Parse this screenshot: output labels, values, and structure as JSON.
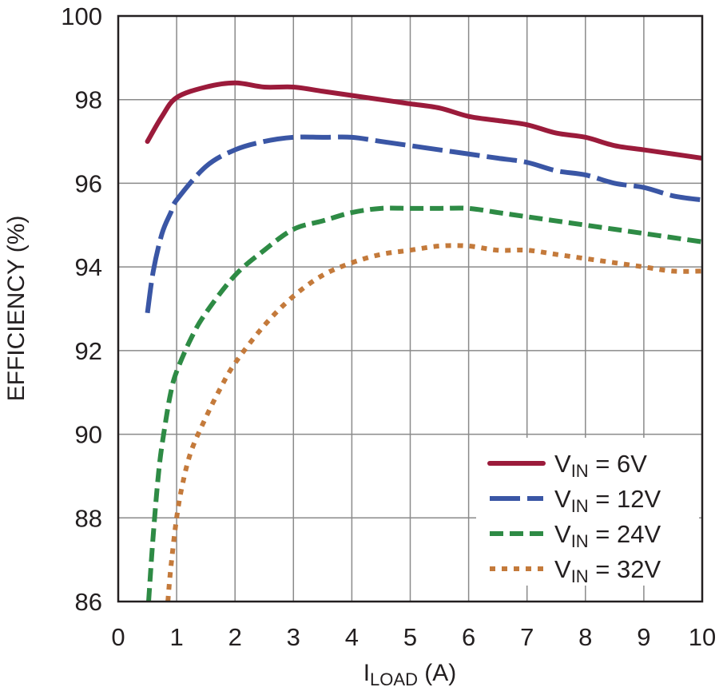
{
  "chart_data": {
    "type": "line",
    "xlabel": "I",
    "xlabel_sub": "LOAD",
    "xlabel_unit": " (A)",
    "ylabel": "EFFICIENCY (%)",
    "xlim": [
      0,
      10
    ],
    "ylim": [
      86,
      100
    ],
    "x_ticks": [
      0,
      1,
      2,
      3,
      4,
      5,
      6,
      7,
      8,
      9,
      10
    ],
    "y_ticks": [
      86,
      88,
      90,
      92,
      94,
      96,
      98,
      100
    ],
    "grid": true,
    "legend_position": "bottom-right",
    "series": [
      {
        "name_main": "V",
        "name_sub": "IN",
        "name_rest": " = 6V",
        "color": "#9b1b3b",
        "style": "solid",
        "points": [
          [
            0.5,
            97.0
          ],
          [
            0.75,
            97.6
          ],
          [
            1.0,
            98.05
          ],
          [
            1.5,
            98.3
          ],
          [
            2.0,
            98.4
          ],
          [
            2.5,
            98.3
          ],
          [
            3.0,
            98.3
          ],
          [
            3.5,
            98.2
          ],
          [
            4.0,
            98.1
          ],
          [
            4.5,
            98.0
          ],
          [
            5.0,
            97.9
          ],
          [
            5.5,
            97.8
          ],
          [
            6.0,
            97.6
          ],
          [
            6.5,
            97.5
          ],
          [
            7.0,
            97.4
          ],
          [
            7.5,
            97.2
          ],
          [
            8.0,
            97.1
          ],
          [
            8.5,
            96.9
          ],
          [
            9.0,
            96.8
          ],
          [
            9.5,
            96.7
          ],
          [
            10.0,
            96.6
          ]
        ]
      },
      {
        "name_main": "V",
        "name_sub": "IN",
        "name_rest": " = 12V",
        "color": "#3a56a5",
        "style": "long-dash",
        "points": [
          [
            0.5,
            92.9
          ],
          [
            0.6,
            93.9
          ],
          [
            0.75,
            94.8
          ],
          [
            0.9,
            95.3
          ],
          [
            1.0,
            95.6
          ],
          [
            1.5,
            96.4
          ],
          [
            2.0,
            96.8
          ],
          [
            2.5,
            97.0
          ],
          [
            3.0,
            97.1
          ],
          [
            3.5,
            97.1
          ],
          [
            4.0,
            97.1
          ],
          [
            4.5,
            97.0
          ],
          [
            5.0,
            96.9
          ],
          [
            5.5,
            96.8
          ],
          [
            6.0,
            96.7
          ],
          [
            6.5,
            96.6
          ],
          [
            7.0,
            96.5
          ],
          [
            7.5,
            96.3
          ],
          [
            8.0,
            96.2
          ],
          [
            8.5,
            96.0
          ],
          [
            9.0,
            95.9
          ],
          [
            9.5,
            95.7
          ],
          [
            10.0,
            95.6
          ]
        ]
      },
      {
        "name_main": "V",
        "name_sub": "IN",
        "name_rest": " = 24V",
        "color": "#2e8b45",
        "style": "dash",
        "points": [
          [
            0.52,
            86.0
          ],
          [
            0.6,
            87.6
          ],
          [
            0.7,
            89.2
          ],
          [
            0.8,
            90.2
          ],
          [
            0.9,
            91.0
          ],
          [
            1.0,
            91.5
          ],
          [
            1.25,
            92.3
          ],
          [
            1.5,
            92.9
          ],
          [
            2.0,
            93.8
          ],
          [
            2.5,
            94.4
          ],
          [
            3.0,
            94.9
          ],
          [
            3.5,
            95.1
          ],
          [
            4.0,
            95.3
          ],
          [
            4.5,
            95.4
          ],
          [
            5.0,
            95.4
          ],
          [
            5.5,
            95.4
          ],
          [
            6.0,
            95.4
          ],
          [
            6.5,
            95.3
          ],
          [
            7.0,
            95.2
          ],
          [
            7.5,
            95.1
          ],
          [
            8.0,
            95.0
          ],
          [
            8.5,
            94.9
          ],
          [
            9.0,
            94.8
          ],
          [
            9.5,
            94.7
          ],
          [
            10.0,
            94.6
          ]
        ]
      },
      {
        "name_main": "V",
        "name_sub": "IN",
        "name_rest": " = 32V",
        "color": "#c47a3b",
        "style": "dot",
        "points": [
          [
            0.85,
            86.0
          ],
          [
            0.9,
            86.8
          ],
          [
            1.0,
            88.0
          ],
          [
            1.1,
            88.8
          ],
          [
            1.25,
            89.6
          ],
          [
            1.5,
            90.4
          ],
          [
            1.75,
            91.1
          ],
          [
            2.0,
            91.7
          ],
          [
            2.5,
            92.6
          ],
          [
            3.0,
            93.3
          ],
          [
            3.5,
            93.8
          ],
          [
            4.0,
            94.1
          ],
          [
            4.5,
            94.3
          ],
          [
            5.0,
            94.4
          ],
          [
            5.5,
            94.5
          ],
          [
            6.0,
            94.5
          ],
          [
            6.5,
            94.4
          ],
          [
            7.0,
            94.4
          ],
          [
            7.5,
            94.3
          ],
          [
            8.0,
            94.2
          ],
          [
            8.5,
            94.1
          ],
          [
            9.0,
            94.0
          ],
          [
            9.5,
            93.9
          ],
          [
            10.0,
            93.9
          ]
        ]
      }
    ]
  }
}
